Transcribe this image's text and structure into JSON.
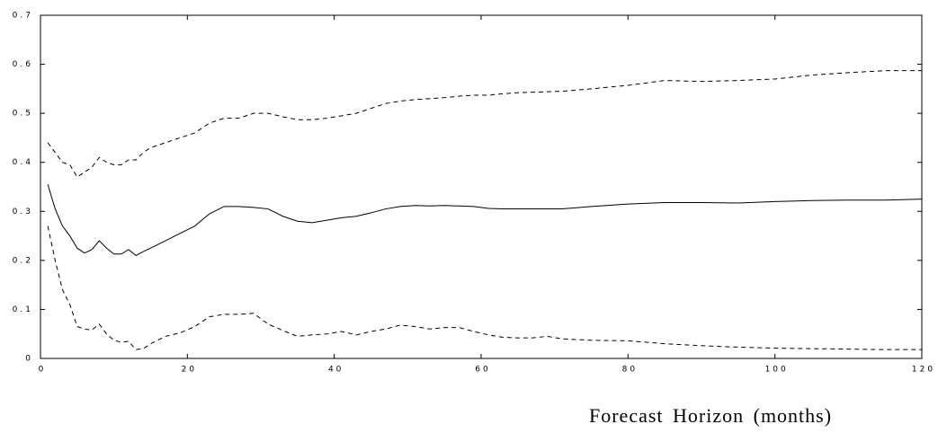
{
  "chart_data": {
    "type": "line",
    "x_label": "Forecast Horizon (months)",
    "x": [
      1,
      2,
      3,
      4,
      5,
      6,
      7,
      8,
      9,
      10,
      11,
      12,
      13,
      14,
      15,
      17,
      19,
      21,
      23,
      25,
      27,
      29,
      31,
      33,
      35,
      37,
      39,
      41,
      43,
      45,
      47,
      49,
      51,
      53,
      55,
      57,
      59,
      61,
      63,
      65,
      67,
      69,
      71,
      75,
      80,
      85,
      90,
      95,
      100,
      105,
      110,
      115,
      120
    ],
    "series": [
      {
        "color": "#000000",
        "style": "solid",
        "values": [
          0.355,
          0.305,
          0.27,
          0.25,
          0.225,
          0.215,
          0.222,
          0.24,
          0.225,
          0.213,
          0.213,
          0.222,
          0.21,
          0.218,
          0.225,
          0.24,
          0.255,
          0.27,
          0.295,
          0.31,
          0.31,
          0.308,
          0.305,
          0.29,
          0.28,
          0.277,
          0.282,
          0.287,
          0.29,
          0.297,
          0.305,
          0.31,
          0.312,
          0.311,
          0.312,
          0.311,
          0.31,
          0.306,
          0.305,
          0.305,
          0.305,
          0.305,
          0.305,
          0.31,
          0.315,
          0.318,
          0.318,
          0.317,
          0.32,
          0.322,
          0.323,
          0.323,
          0.325
        ]
      },
      {
        "color": "#000000",
        "style": "dashed",
        "values": [
          0.44,
          0.42,
          0.4,
          0.395,
          0.37,
          0.38,
          0.39,
          0.41,
          0.4,
          0.395,
          0.395,
          0.405,
          0.405,
          0.42,
          0.43,
          0.44,
          0.45,
          0.46,
          0.48,
          0.49,
          0.49,
          0.5,
          0.5,
          0.493,
          0.487,
          0.487,
          0.49,
          0.495,
          0.5,
          0.51,
          0.52,
          0.525,
          0.528,
          0.53,
          0.532,
          0.535,
          0.537,
          0.537,
          0.54,
          0.542,
          0.543,
          0.544,
          0.545,
          0.55,
          0.557,
          0.567,
          0.565,
          0.567,
          0.57,
          0.578,
          0.583,
          0.587,
          0.587
        ]
      },
      {
        "color": "#000000",
        "style": "dashed",
        "values": [
          0.27,
          0.2,
          0.14,
          0.11,
          0.065,
          0.06,
          0.058,
          0.07,
          0.05,
          0.037,
          0.033,
          0.035,
          0.018,
          0.02,
          0.03,
          0.045,
          0.052,
          0.065,
          0.085,
          0.09,
          0.09,
          0.092,
          0.07,
          0.057,
          0.045,
          0.048,
          0.05,
          0.055,
          0.048,
          0.055,
          0.06,
          0.068,
          0.065,
          0.06,
          0.063,
          0.063,
          0.055,
          0.048,
          0.043,
          0.042,
          0.042,
          0.045,
          0.04,
          0.037,
          0.036,
          0.03,
          0.026,
          0.023,
          0.021,
          0.02,
          0.019,
          0.018,
          0.018
        ]
      }
    ],
    "xlim": [
      0,
      120
    ],
    "xticks": [
      0,
      20,
      40,
      60,
      80,
      100,
      120
    ],
    "ylim": [
      0,
      0.7
    ],
    "yticks": [
      0,
      0.1,
      0.2,
      0.3,
      0.4,
      0.5,
      0.6,
      0.7
    ]
  }
}
